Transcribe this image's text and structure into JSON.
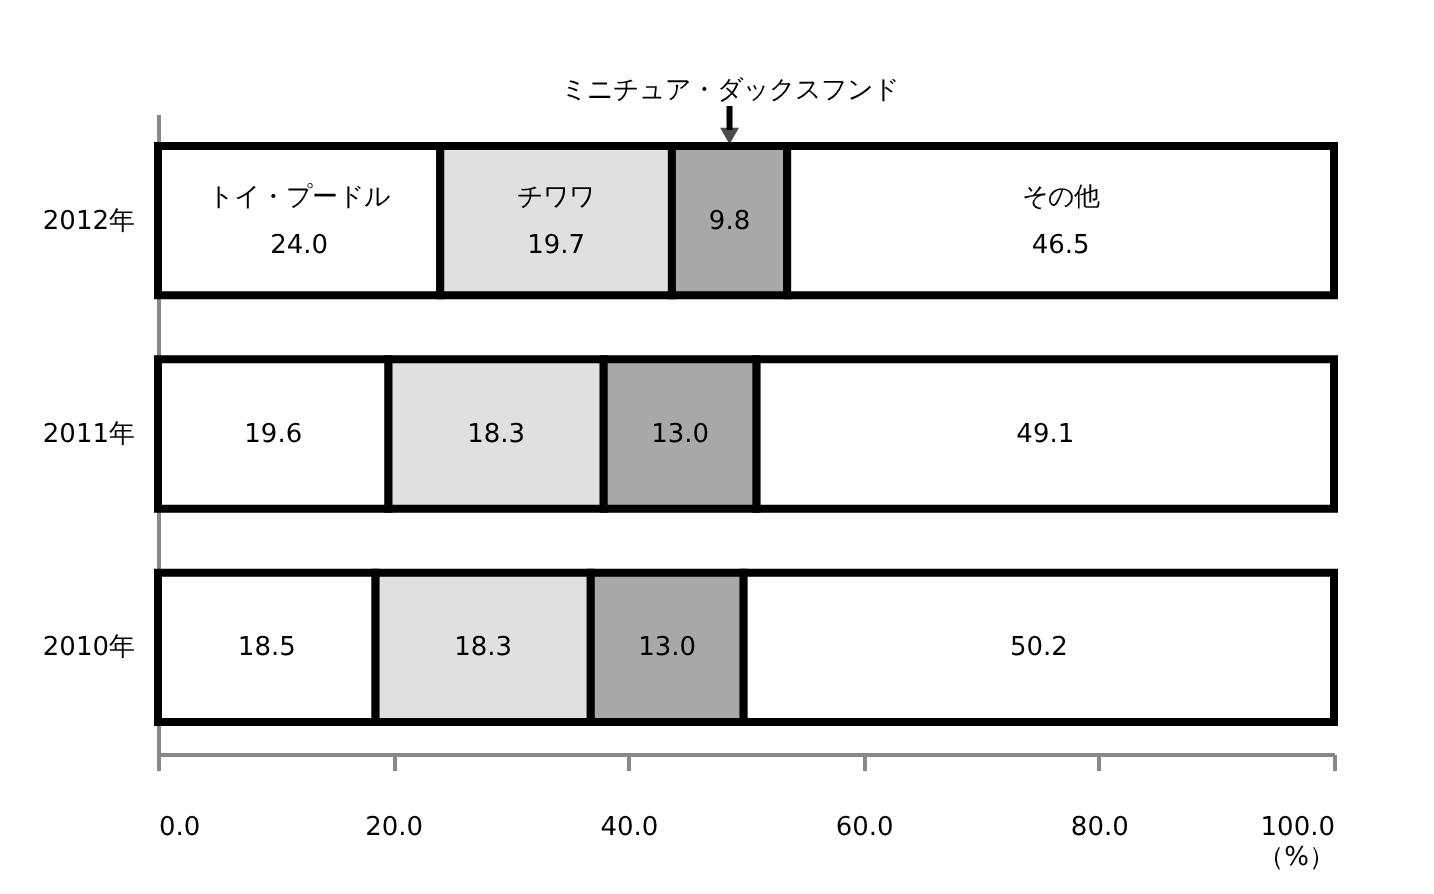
{
  "chart_data": {
    "type": "bar",
    "orientation": "horizontal",
    "stacked": true,
    "xlabel": "（%）",
    "categories": [
      "2012年",
      "2011年",
      "2010年"
    ],
    "series": [
      {
        "name": "トイ・プードル",
        "color": "#ffffff",
        "values": [
          24.0,
          19.6,
          18.5
        ],
        "value_labels": [
          "24.0",
          "19.6",
          "18.5"
        ]
      },
      {
        "name": "チワワ",
        "color": "#e0e0e0",
        "values": [
          19.7,
          18.3,
          18.3
        ],
        "value_labels": [
          "19.7",
          "18.3",
          "18.3"
        ]
      },
      {
        "name": "ミニチュア・ダックスフンド",
        "color": "#a8a8a8",
        "values": [
          9.8,
          13.0,
          13.0
        ],
        "value_labels": [
          "9.8",
          "13.0",
          "13.0"
        ]
      },
      {
        "name": "その他",
        "color": "#ffffff",
        "values": [
          46.5,
          49.1,
          50.2
        ],
        "value_labels": [
          "46.5",
          "49.1",
          "50.2"
        ]
      }
    ],
    "xlim": [
      0,
      100
    ],
    "xticks": [
      {
        "value": 0,
        "label": "0.0"
      },
      {
        "value": 20,
        "label": "20.0"
      },
      {
        "value": 40,
        "label": "40.0"
      },
      {
        "value": 60,
        "label": "60.0"
      },
      {
        "value": 80,
        "label": "80.0"
      },
      {
        "value": 100,
        "label": "100.0"
      }
    ],
    "grid": false
  }
}
